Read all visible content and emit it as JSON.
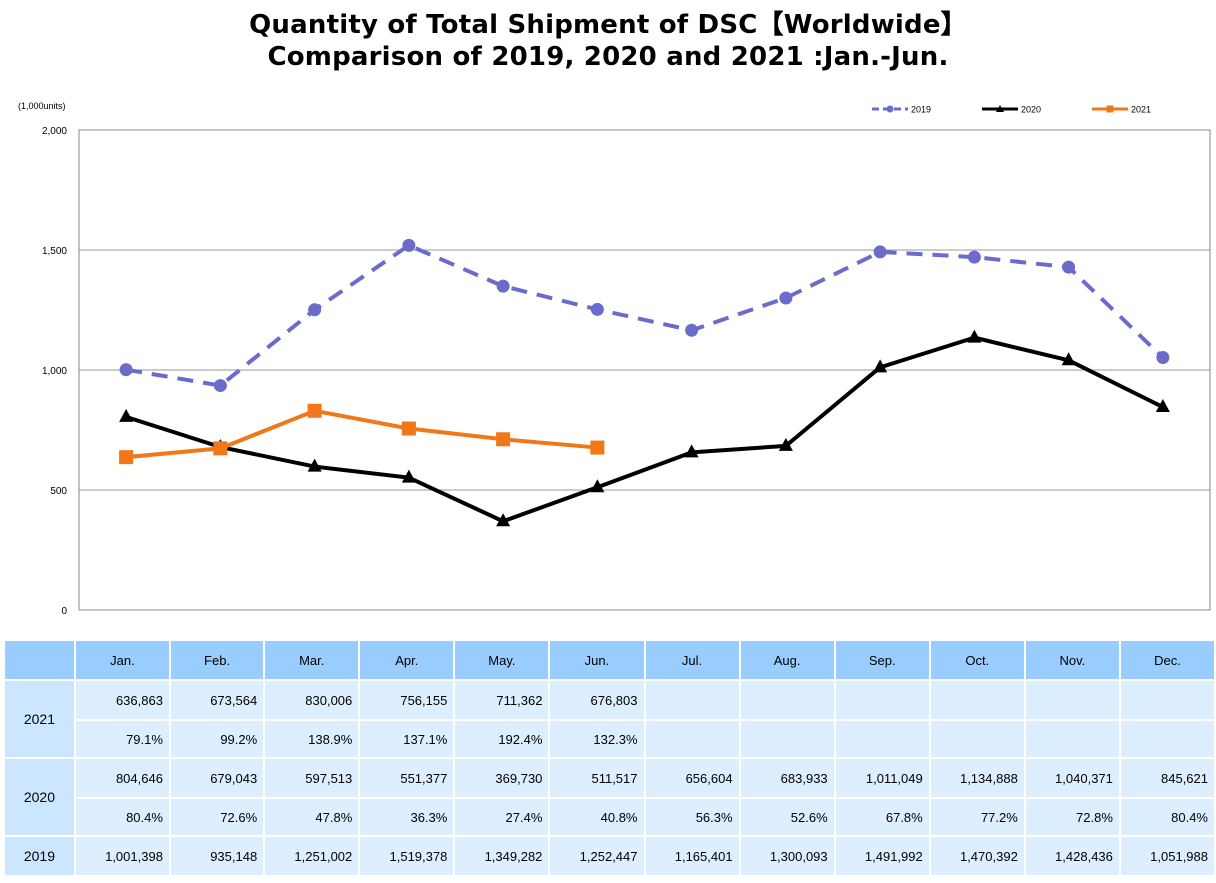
{
  "title_line1": "Quantity of Total Shipment of DSC【Worldwide】",
  "title_line2": "Comparison of 2019, 2020 and 2021 :Jan.-Jun.",
  "chart_data": {
    "type": "line",
    "title": "Quantity of Total Shipment of DSC【Worldwide】 Comparison of 2019, 2020 and 2021 :Jan.-Jun.",
    "unit_label": "(1,000units)",
    "xlabel": "",
    "ylabel": "(1,000units)",
    "ylim": [
      0,
      2000
    ],
    "yticks": [
      0,
      500,
      1000,
      1500,
      2000
    ],
    "ytick_labels": [
      "0",
      "500",
      "1,000",
      "1,500",
      "2,000"
    ],
    "grid": true,
    "legend_position": "top-right",
    "categories": [
      "Jan.",
      "Feb.",
      "Mar.",
      "Apr.",
      "May.",
      "Jun.",
      "Jul.",
      "Aug.",
      "Sep.",
      "Oct.",
      "Nov.",
      "Dec."
    ],
    "series": [
      {
        "name": "2019",
        "color": "#6b6bcc",
        "style": "dashed",
        "marker": "circle",
        "values": [
          1001.398,
          935.148,
          1251.002,
          1519.378,
          1349.282,
          1252.447,
          1165.401,
          1300.093,
          1491.992,
          1470.392,
          1428.436,
          1051.988
        ]
      },
      {
        "name": "2020",
        "color": "#000000",
        "style": "solid",
        "marker": "triangle",
        "values": [
          804.646,
          679.043,
          597.513,
          551.377,
          369.73,
          511.517,
          656.604,
          683.933,
          1011.049,
          1134.888,
          1040.371,
          845.621
        ]
      },
      {
        "name": "2021",
        "color": "#f07818",
        "style": "solid",
        "marker": "square",
        "values": [
          636.863,
          673.564,
          830.006,
          756.155,
          711.362,
          676.803,
          null,
          null,
          null,
          null,
          null,
          null
        ]
      }
    ]
  },
  "table": {
    "months": [
      "Jan.",
      "Feb.",
      "Mar.",
      "Apr.",
      "May.",
      "Jun.",
      "Jul.",
      "Aug.",
      "Sep.",
      "Oct.",
      "Nov.",
      "Dec."
    ],
    "rows": [
      {
        "year": "2021",
        "units": [
          "636,863",
          "673,564",
          "830,006",
          "756,155",
          "711,362",
          "676,803",
          "",
          "",
          "",
          "",
          "",
          ""
        ],
        "ratio": [
          "79.1%",
          "99.2%",
          "138.9%",
          "137.1%",
          "192.4%",
          "132.3%",
          "",
          "",
          "",
          "",
          "",
          ""
        ]
      },
      {
        "year": "2020",
        "units": [
          "804,646",
          "679,043",
          "597,513",
          "551,377",
          "369,730",
          "511,517",
          "656,604",
          "683,933",
          "1,011,049",
          "1,134,888",
          "1,040,371",
          "845,621"
        ],
        "ratio": [
          "80.4%",
          "72.6%",
          "47.8%",
          "36.3%",
          "27.4%",
          "40.8%",
          "56.3%",
          "52.6%",
          "67.8%",
          "77.2%",
          "72.8%",
          "80.4%"
        ]
      },
      {
        "year": "2019",
        "units": [
          "1,001,398",
          "935,148",
          "1,251,002",
          "1,519,378",
          "1,349,282",
          "1,252,447",
          "1,165,401",
          "1,300,093",
          "1,491,992",
          "1,470,392",
          "1,428,436",
          "1,051,988"
        ]
      }
    ]
  }
}
